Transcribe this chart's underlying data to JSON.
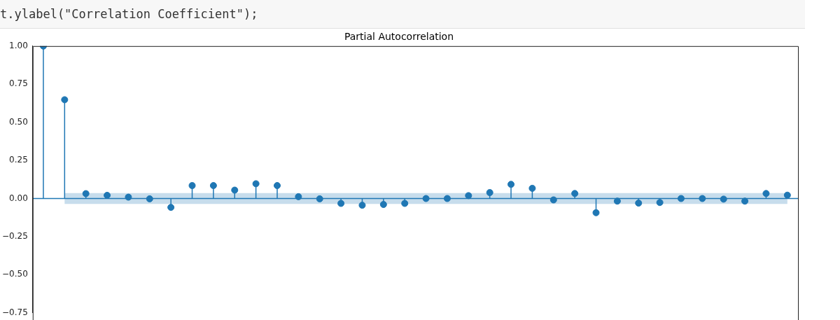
{
  "chart_data": {
    "type": "lollipop",
    "title": "Partial Autocorrelation",
    "annotations": [
      "t.ylabel(\"Correlation Coefficient\");"
    ],
    "categories": [
      null,
      null,
      null,
      null,
      null,
      null,
      null,
      null,
      null,
      null,
      null,
      null,
      null,
      null,
      null,
      null,
      null,
      null,
      null,
      null,
      null,
      null,
      null,
      null,
      null,
      null,
      null,
      null,
      null,
      null,
      null,
      null,
      null,
      null,
      null,
      null
    ],
    "series": [
      {
        "color": "#1f77b4",
        "values": [
          1.0,
          0.648,
          0.032,
          0.021,
          0.009,
          -0.002,
          -0.058,
          0.085,
          0.085,
          0.055,
          0.097,
          0.085,
          0.012,
          -0.002,
          -0.032,
          -0.044,
          -0.039,
          -0.032,
          0.0,
          0.0,
          0.019,
          0.039,
          0.093,
          0.067,
          -0.009,
          0.033,
          -0.093,
          -0.017,
          -0.03,
          -0.026,
          0.0,
          0.0,
          -0.004,
          -0.017,
          0.033,
          0.022
        ],
        "lower": [
          null,
          -0.036,
          -0.036,
          -0.036,
          -0.036,
          -0.036,
          -0.036,
          -0.036,
          -0.036,
          -0.036,
          -0.036,
          -0.036,
          -0.036,
          -0.036,
          -0.036,
          -0.036,
          -0.036,
          -0.036,
          -0.036,
          -0.036,
          -0.036,
          -0.036,
          -0.036,
          -0.036,
          -0.036,
          -0.036,
          -0.036,
          -0.036,
          -0.036,
          -0.036,
          -0.036,
          -0.036,
          -0.036,
          -0.036,
          -0.036,
          -0.036
        ],
        "upper": [
          null,
          0.036,
          0.036,
          0.036,
          0.036,
          0.036,
          0.036,
          0.036,
          0.036,
          0.036,
          0.036,
          0.036,
          0.036,
          0.036,
          0.036,
          0.036,
          0.036,
          0.036,
          0.036,
          0.036,
          0.036,
          0.036,
          0.036,
          0.036,
          0.036,
          0.036,
          0.036,
          0.036,
          0.036,
          0.036,
          0.036,
          0.036,
          0.036,
          0.036,
          0.036,
          0.036
        ]
      }
    ],
    "ref_lines": [
      {
        "axis": "y",
        "value": 0,
        "color": "#1f77b4"
      }
    ],
    "ylim": [
      -0.75,
      1.0
    ],
    "yticks": [
      {
        "value": 1.0,
        "label": "1.00"
      },
      {
        "value": 0.75,
        "label": "0.75"
      },
      {
        "value": 0.5,
        "label": "0.50"
      },
      {
        "value": 0.25,
        "label": "0.25"
      },
      {
        "value": 0.0,
        "label": "0.00"
      },
      {
        "value": -0.25,
        "label": "−0.25"
      },
      {
        "value": -0.5,
        "label": "−0.50"
      },
      {
        "value": -0.75,
        "label": "−0.75"
      }
    ],
    "tick_labels": "y",
    "marker": "circle",
    "grid": false,
    "legend": false
  }
}
